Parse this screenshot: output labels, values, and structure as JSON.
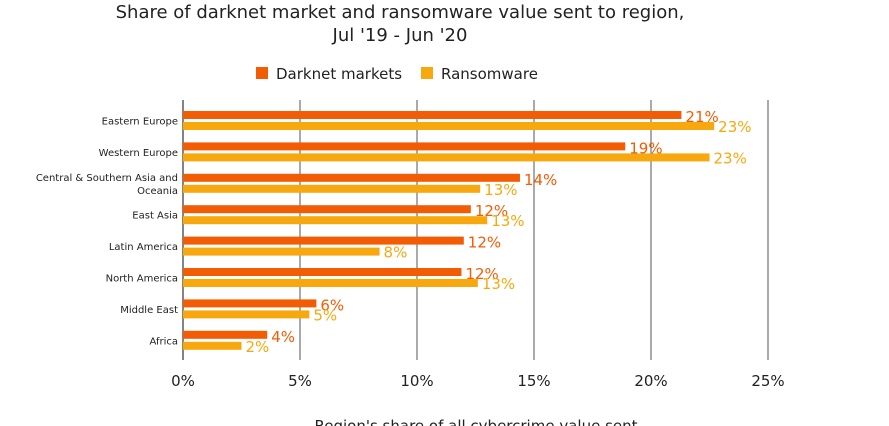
{
  "chart_data": {
    "type": "bar",
    "orientation": "horizontal",
    "title_line1": "Share of darknet market and ransomware value sent to region,",
    "title_line2": "Jul '19 - Jun '20",
    "xlabel": "Region's share of all cybercrime value sent",
    "ylabel": "",
    "xlim": [
      0,
      25
    ],
    "xticks": [
      "0%",
      "5%",
      "10%",
      "15%",
      "20%",
      "25%"
    ],
    "legend_position": "top",
    "grid": true,
    "categories": [
      [
        "Eastern Europe"
      ],
      [
        "Western Europe"
      ],
      [
        "Central & Southern Asia and",
        "Oceania"
      ],
      [
        "East Asia"
      ],
      [
        "Latin America"
      ],
      [
        "North America"
      ],
      [
        "Middle East"
      ],
      [
        "Africa"
      ]
    ],
    "series": [
      {
        "name": "Darknet markets",
        "color": "#F25C05",
        "values": [
          21.3,
          18.9,
          14.4,
          12.3,
          12.0,
          11.9,
          5.7,
          3.6
        ],
        "labels": [
          "21%",
          "19%",
          "14%",
          "12%",
          "12%",
          "12%",
          "6%",
          "4%"
        ]
      },
      {
        "name": "Ransomware",
        "color": "#F7A80F",
        "values": [
          22.7,
          22.5,
          12.7,
          13.0,
          8.4,
          12.6,
          5.4,
          2.5
        ],
        "labels": [
          "23%",
          "23%",
          "13%",
          "13%",
          "8%",
          "13%",
          "5%",
          "2%"
        ]
      }
    ]
  }
}
